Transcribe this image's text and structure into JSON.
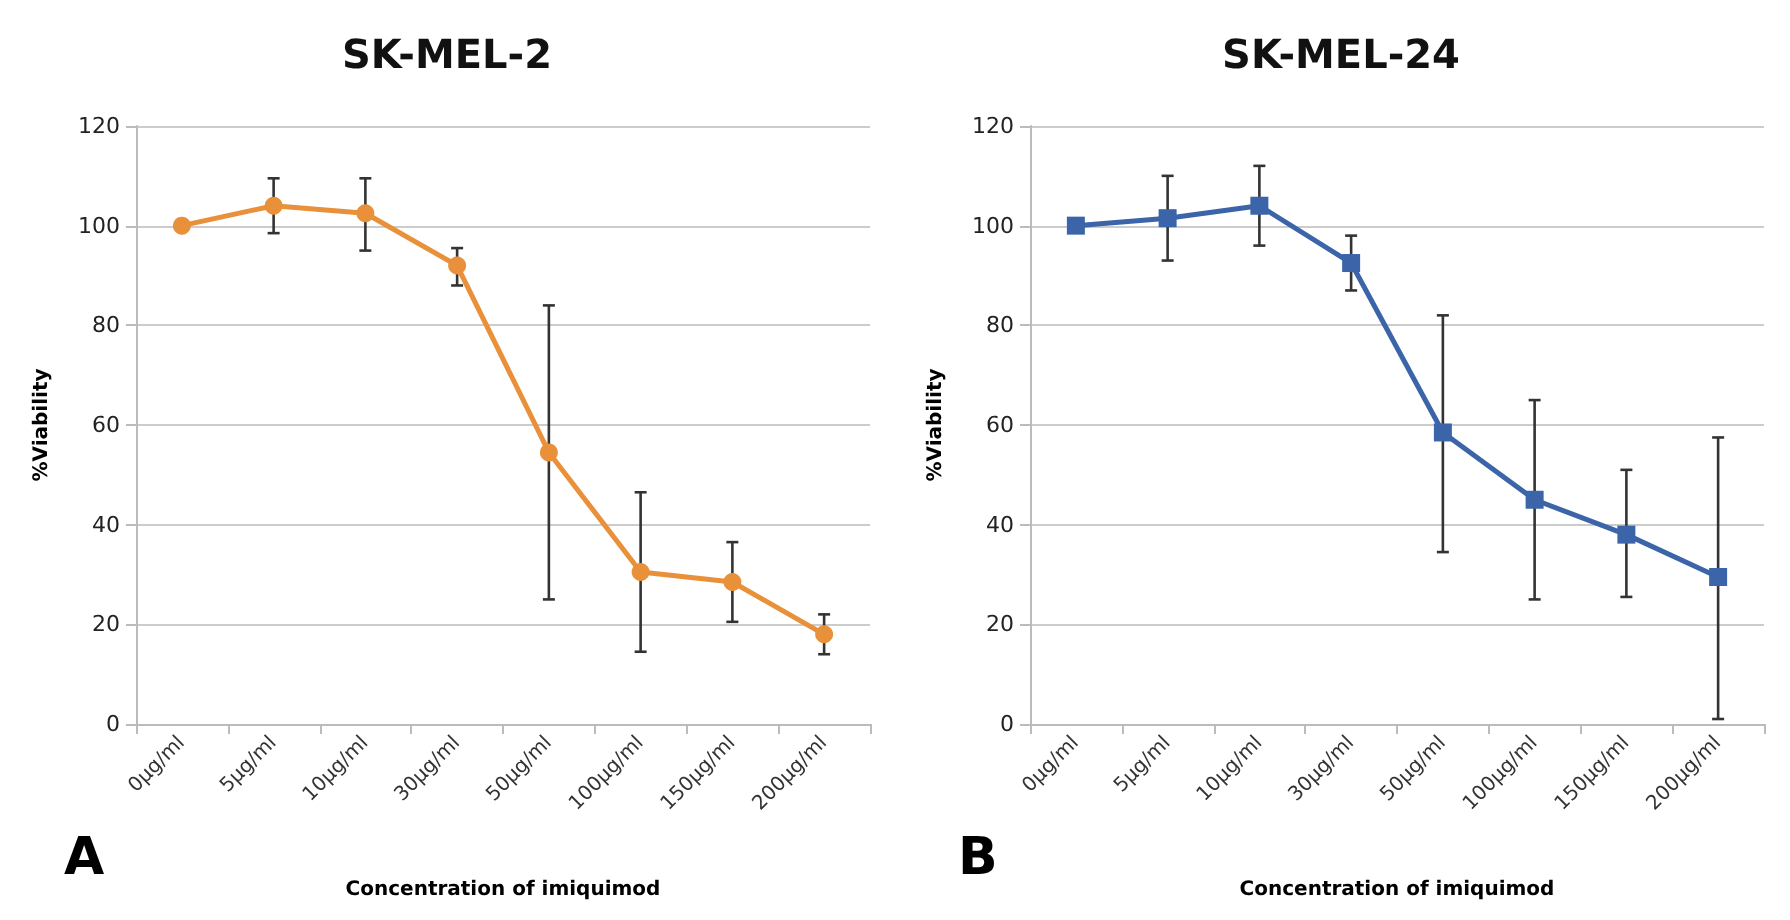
{
  "chart_data": [
    {
      "type": "line",
      "title": "SK-MEL-2",
      "xlabel": "Concentration of imiquimod",
      "ylabel": "%Viability",
      "annotations": [
        "A"
      ],
      "categories": [
        "0µg/ml",
        "5µg/ml",
        "10µg/ml",
        "30µg/ml",
        "50µg/ml",
        "100µg/ml",
        "150µg/ml",
        "200µg/ml"
      ],
      "series": [
        {
          "color": "#e8913a",
          "values": [
            100,
            104,
            102.5,
            92,
            54.5,
            30.5,
            28.5,
            18
          ],
          "errors": [
            null,
            [
              98.5,
              109.5
            ],
            [
              95,
              109.5
            ],
            [
              88,
              95.5
            ],
            [
              25,
              84
            ],
            [
              14.5,
              46.5
            ],
            [
              20.5,
              36.5
            ],
            [
              14,
              22
            ]
          ]
        }
      ],
      "ylim": [
        0,
        120
      ],
      "yticks": [
        0,
        20,
        40,
        60,
        80,
        100,
        120
      ],
      "grid": "y",
      "marker": "circle",
      "line_style": "solid"
    },
    {
      "type": "line",
      "title": "SK-MEL-24",
      "xlabel": "Concentration of imiquimod",
      "ylabel": "%Viability",
      "annotations": [
        "B"
      ],
      "categories": [
        "0µg/ml",
        "5µg/ml",
        "10µg/ml",
        "30µg/ml",
        "50µg/ml",
        "100µg/ml",
        "150µg/ml",
        "200µg/ml"
      ],
      "series": [
        {
          "color": "#3b65a8",
          "values": [
            100,
            101.5,
            104,
            92.5,
            58.5,
            45,
            38,
            29.5
          ],
          "errors": [
            null,
            [
              93,
              110
            ],
            [
              96,
              112
            ],
            [
              87,
              98
            ],
            [
              34.5,
              82
            ],
            [
              25,
              65
            ],
            [
              25.5,
              51
            ],
            [
              1,
              57.5
            ]
          ]
        }
      ],
      "ylim": [
        0,
        120
      ],
      "yticks": [
        0,
        20,
        40,
        60,
        80,
        100,
        120
      ],
      "grid": "y",
      "marker": "square",
      "line_style": "solid"
    }
  ]
}
